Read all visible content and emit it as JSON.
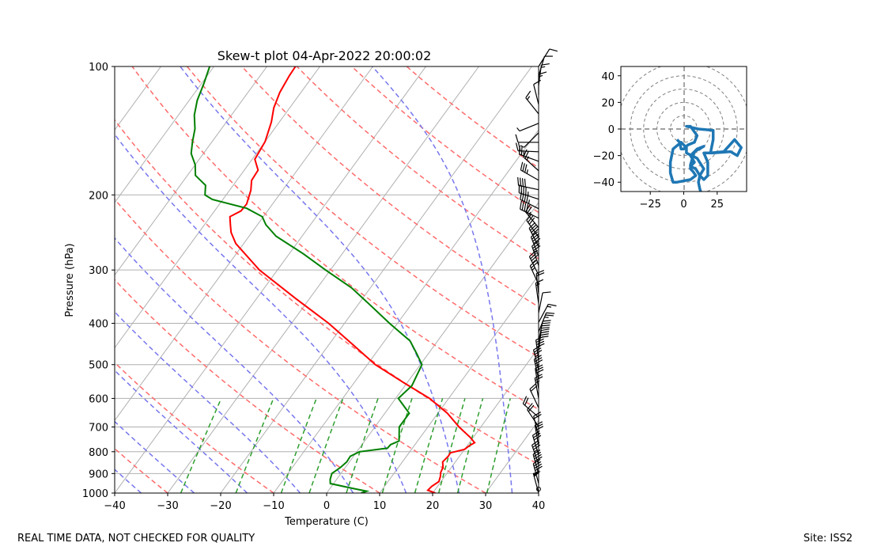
{
  "title": "Skew-t plot 04-Apr-2022 20:00:02",
  "footer": {
    "left": "REAL TIME DATA, NOT CHECKED FOR QUALITY",
    "right": "Site: ISS2"
  },
  "colors": {
    "temperature": "#ff0000",
    "dewpoint": "#008000",
    "dry_adiabat": "#ff6b6b",
    "moist_adiabat": "#7777ee",
    "mixing_ratio": "#2e9e2e",
    "isotherm": "#b0b0b0",
    "hodograph": "#1f77b4",
    "barbs": "#000000"
  },
  "chart_data": [
    {
      "type": "line",
      "subtype": "skew-t log-p",
      "title": "Skew-t plot 04-Apr-2022 20:00:02",
      "xlabel": "Temperature (C)",
      "ylabel": "Pressure (hPa)",
      "xlim": [
        -40,
        40
      ],
      "ylim": [
        1000,
        100
      ],
      "yscale": "log",
      "x_ticks": [
        -40,
        -30,
        -20,
        -10,
        0,
        10,
        20,
        30,
        40
      ],
      "y_ticks": [
        1000,
        900,
        800,
        700,
        600,
        500,
        400,
        300,
        200,
        100
      ],
      "grid": true,
      "series": [
        {
          "name": "Temperature",
          "points": [
            [
              1000,
              20.5
            ],
            [
              985,
              18.7
            ],
            [
              965,
              18.9
            ],
            [
              940,
              19.6
            ],
            [
              915,
              19.2
            ],
            [
              895,
              18.7
            ],
            [
              870,
              18.4
            ],
            [
              845,
              17.6
            ],
            [
              820,
              17.9
            ],
            [
              805,
              17.8
            ],
            [
              790,
              20.0
            ],
            [
              775,
              20.4
            ],
            [
              762,
              21.0
            ],
            [
              740,
              19.4
            ],
            [
              700,
              15.9
            ],
            [
              650,
              11.8
            ],
            [
              600,
              6.4
            ],
            [
              550,
              -0.8
            ],
            [
              500,
              -8.5
            ],
            [
              450,
              -15.3
            ],
            [
              400,
              -23.0
            ],
            [
              350,
              -32.6
            ],
            [
              300,
              -43.4
            ],
            [
              260,
              -51.5
            ],
            [
              245,
              -53.9
            ],
            [
              235,
              -55.1
            ],
            [
              225,
              -56.3
            ],
            [
              218,
              -55.0
            ],
            [
              210,
              -54.9
            ],
            [
              195,
              -56.0
            ],
            [
              185,
              -57.2
            ],
            [
              175,
              -57.4
            ],
            [
              165,
              -59.5
            ],
            [
              150,
              -60.0
            ],
            [
              135,
              -61.5
            ],
            [
              125,
              -63.0
            ],
            [
              115,
              -64.0
            ],
            [
              105,
              -64.5
            ],
            [
              100,
              -64.6
            ]
          ]
        },
        {
          "name": "Dewpoint",
          "points": [
            [
              1000,
              6.5
            ],
            [
              990,
              7.3
            ],
            [
              975,
              4.3
            ],
            [
              950,
              -0.6
            ],
            [
              930,
              -1.2
            ],
            [
              900,
              -1.7
            ],
            [
              870,
              -0.9
            ],
            [
              845,
              -0.5
            ],
            [
              820,
              -0.6
            ],
            [
              800,
              0.5
            ],
            [
              785,
              5.3
            ],
            [
              770,
              5.4
            ],
            [
              755,
              6.5
            ],
            [
              700,
              4.6
            ],
            [
              650,
              4.6
            ],
            [
              600,
              0.5
            ],
            [
              560,
              1.3
            ],
            [
              500,
              0.3
            ],
            [
              470,
              -2.3
            ],
            [
              440,
              -5.2
            ],
            [
              400,
              -11.5
            ],
            [
              360,
              -18.1
            ],
            [
              330,
              -23.6
            ],
            [
              300,
              -30.9
            ],
            [
              275,
              -37.3
            ],
            [
              250,
              -44.9
            ],
            [
              235,
              -48.4
            ],
            [
              225,
              -50.2
            ],
            [
              215,
              -54.3
            ],
            [
              205,
              -62.0
            ],
            [
              200,
              -64.0
            ],
            [
              190,
              -65.2
            ],
            [
              180,
              -68.5
            ],
            [
              170,
              -70.0
            ],
            [
              160,
              -72.3
            ],
            [
              150,
              -73.7
            ],
            [
              140,
              -75.0
            ],
            [
              130,
              -77.0
            ],
            [
              120,
              -78.5
            ],
            [
              110,
              -79.5
            ],
            [
              100,
              -80.8
            ]
          ]
        }
      ]
    },
    {
      "type": "line",
      "subtype": "hodograph",
      "xlim": [
        -47,
        47
      ],
      "ylim": [
        -47,
        47
      ],
      "x_ticks": [
        -25,
        0,
        25
      ],
      "y_ticks": [
        40,
        20,
        0,
        -20,
        -40
      ],
      "rings": [
        10,
        20,
        30,
        40,
        50
      ],
      "series": [
        {
          "name": "",
          "points": [
            [
              13,
              -48
            ],
            [
              12,
              -45
            ],
            [
              11,
              -40
            ],
            [
              12,
              -35
            ],
            [
              9,
              -30
            ],
            [
              5,
              -28
            ],
            [
              8,
              -25
            ],
            [
              5,
              -20
            ],
            [
              10,
              -15
            ],
            [
              15,
              -13
            ],
            [
              8,
              -17
            ],
            [
              5,
              -27
            ],
            [
              5,
              -30
            ],
            [
              7,
              -32
            ],
            [
              9,
              -35
            ],
            [
              5,
              -38
            ],
            [
              -5,
              -40
            ],
            [
              -8,
              -40
            ],
            [
              -10,
              -33
            ],
            [
              -10,
              -25
            ],
            [
              -8,
              -15
            ],
            [
              -2,
              -10
            ],
            [
              2,
              -14
            ],
            [
              2,
              -18
            ],
            [
              10,
              -22
            ],
            [
              15,
              -30
            ],
            [
              12,
              -35
            ],
            [
              15,
              -38
            ],
            [
              18,
              -35
            ],
            [
              18,
              -25
            ],
            [
              15,
              -18
            ],
            [
              22,
              -18
            ],
            [
              35,
              -17
            ],
            [
              40,
              -20
            ],
            [
              43,
              -14
            ],
            [
              38,
              -8
            ],
            [
              30,
              -17
            ],
            [
              20,
              -18
            ],
            [
              22,
              -8
            ],
            [
              22,
              -1
            ],
            [
              11,
              0
            ],
            [
              2,
              2
            ],
            [
              5,
              2
            ],
            [
              10,
              -5
            ],
            [
              8,
              -10
            ],
            [
              3,
              -12
            ],
            [
              0,
              -15
            ],
            [
              -2,
              -15
            ],
            [
              -3,
              -10
            ],
            [
              -5,
              -8
            ]
          ]
        }
      ]
    }
  ]
}
